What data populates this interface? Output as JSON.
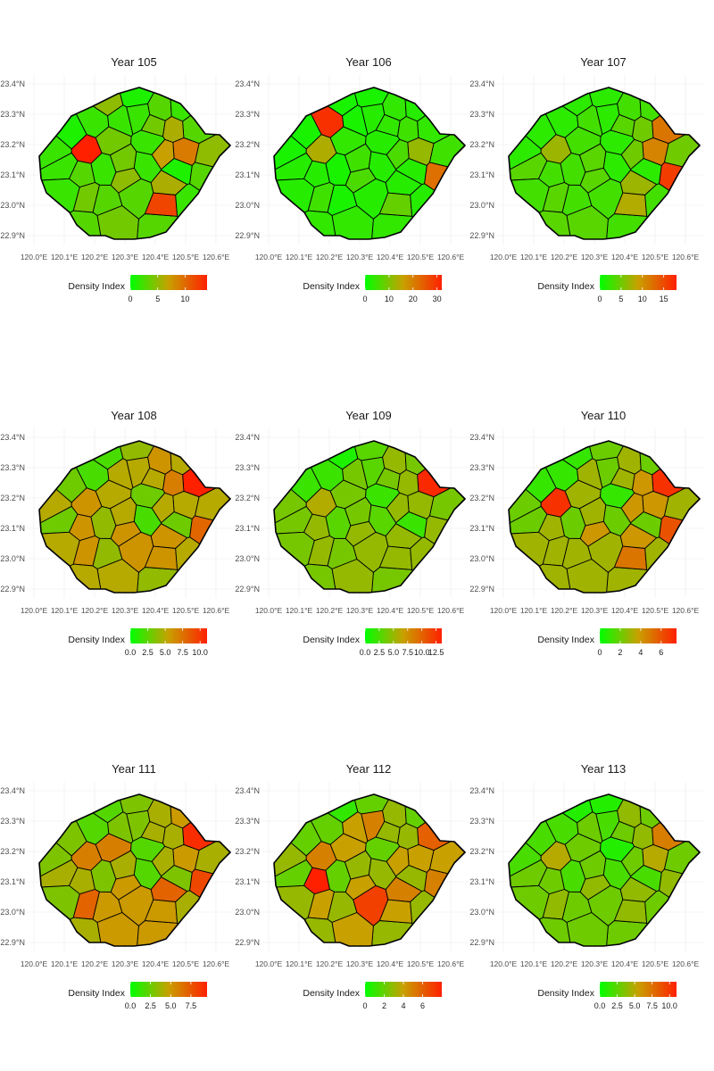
{
  "figure": {
    "legend_title": "Density Index",
    "color_low": "#00ff00",
    "color_mid": "#c8a000",
    "color_high": "#ff2000",
    "lat_ticks": [
      "22.9°N",
      "23.0°N",
      "23.1°N",
      "23.2°N",
      "23.3°N",
      "23.4°N"
    ],
    "lon_ticks": [
      "120.0°E",
      "120.1°E",
      "120.2°E",
      "120.3°E",
      "120.4°E",
      "120.5°E",
      "120.6°E"
    ]
  },
  "chart_data": [
    {
      "type": "heatmap",
      "title": "Year 105",
      "legend_ticks": [
        "0",
        "5",
        "10"
      ],
      "tick_values": [
        0,
        5,
        10
      ],
      "max": 14,
      "values": [
        2,
        1,
        3,
        6,
        3,
        2,
        4,
        1,
        2,
        2,
        3,
        2,
        2,
        4,
        5,
        3,
        6,
        2,
        2,
        5,
        4,
        3,
        1,
        2,
        9,
        4,
        14,
        3,
        3,
        7,
        12,
        3,
        2,
        4,
        5,
        2
      ]
    },
    {
      "type": "heatmap",
      "title": "Year 106",
      "legend_ticks": [
        "0",
        "10",
        "20",
        "30"
      ],
      "tick_values": [
        0,
        10,
        20,
        30
      ],
      "max": 32,
      "values": [
        30,
        3,
        2,
        3,
        4,
        3,
        4,
        2,
        3,
        2,
        4,
        3,
        2,
        4,
        5,
        3,
        5,
        3,
        2,
        6,
        4,
        3,
        2,
        3,
        12,
        5,
        14,
        22,
        4,
        6,
        8,
        4,
        3,
        5,
        2,
        3
      ]
    },
    {
      "type": "heatmap",
      "title": "Year 107",
      "legend_ticks": [
        "0",
        "5",
        "10",
        "15"
      ],
      "tick_values": [
        0,
        5,
        10,
        15
      ],
      "max": 18,
      "values": [
        2,
        2,
        3,
        7,
        12,
        4,
        3,
        2,
        2,
        3,
        3,
        2,
        3,
        4,
        5,
        3,
        5,
        2,
        2,
        4,
        4,
        3,
        2,
        3,
        11,
        4,
        7,
        16,
        3,
        5,
        8,
        4,
        3,
        4,
        2,
        3
      ]
    },
    {
      "type": "heatmap",
      "title": "Year 108",
      "legend_ticks": [
        "0.0",
        "2.5",
        "5.0",
        "7.5",
        "10.0"
      ],
      "tick_values": [
        0,
        2.5,
        5,
        7.5,
        10
      ],
      "max": 11,
      "values": [
        2,
        3,
        4,
        6,
        11,
        3,
        5,
        3,
        2,
        5,
        4,
        5,
        4,
        5,
        5,
        6,
        7,
        3,
        5,
        6,
        5,
        6,
        4,
        5,
        5,
        6,
        6,
        8,
        6,
        5,
        6,
        5,
        5,
        5,
        2,
        5
      ]
    },
    {
      "type": "heatmap",
      "title": "Year 109",
      "legend_ticks": [
        "0.0",
        "2.5",
        "5.0",
        "7.5",
        "10.0",
        "12.5"
      ],
      "tick_values": [
        0,
        2.5,
        5,
        7.5,
        10,
        12.5
      ],
      "max": 13.5,
      "values": [
        2,
        2,
        4,
        5,
        13,
        4,
        4,
        2,
        3,
        4,
        4,
        3,
        3,
        4,
        4,
        5,
        5,
        2,
        4,
        5,
        5,
        5,
        3,
        4,
        5,
        5,
        6,
        5,
        5,
        5,
        5,
        4,
        5,
        4,
        1,
        4
      ]
    },
    {
      "type": "heatmap",
      "title": "Year 110",
      "legend_ticks": [
        "0",
        "2",
        "4",
        "6"
      ],
      "tick_values": [
        0,
        2,
        4,
        6
      ],
      "max": 7.5,
      "values": [
        1,
        2,
        3,
        4,
        7,
        2,
        3,
        1,
        2,
        3,
        3,
        2,
        2,
        3,
        3,
        3,
        4,
        1,
        2,
        4,
        3,
        3,
        2,
        3,
        4,
        3,
        7,
        6,
        3,
        4,
        5,
        3,
        3,
        3,
        1,
        2
      ]
    },
    {
      "type": "heatmap",
      "title": "Year 111",
      "legend_ticks": [
        "0.0",
        "2.5",
        "5.0",
        "7.5"
      ],
      "tick_values": [
        0,
        2.5,
        5,
        7.5
      ],
      "max": 9.5,
      "values": [
        2,
        3,
        5,
        7,
        9,
        4,
        6,
        3,
        2,
        3,
        5,
        3,
        3,
        4,
        4,
        5,
        4,
        2,
        3,
        5,
        5,
        4,
        3,
        3,
        5,
        7,
        6,
        8,
        4,
        4,
        5,
        4,
        4,
        4,
        2,
        5
      ]
    },
    {
      "type": "heatmap",
      "title": "Year 112",
      "legend_ticks": [
        "0",
        "2",
        "4",
        "6"
      ],
      "tick_values": [
        0,
        2,
        4,
        6
      ],
      "max": 8,
      "values": [
        2,
        3,
        3,
        5,
        6,
        2,
        4,
        2,
        3,
        4,
        3,
        5,
        2,
        3,
        4,
        7,
        3,
        2,
        3,
        4,
        4,
        8,
        2,
        3,
        4,
        4,
        5,
        5,
        3,
        4,
        4,
        3,
        3,
        3,
        1,
        2
      ]
    },
    {
      "type": "heatmap",
      "title": "Year 113",
      "legend_ticks": [
        "0.0",
        "2.5",
        "5.0",
        "7.5",
        "10.0"
      ],
      "tick_values": [
        0,
        2.5,
        5,
        7.5,
        10
      ],
      "max": 11,
      "values": [
        2,
        2,
        3,
        4,
        7,
        3,
        3,
        2,
        2,
        3,
        3,
        2,
        2,
        3,
        3,
        3,
        4,
        1,
        2,
        4,
        3,
        3,
        1,
        3,
        5,
        4,
        5,
        4,
        4,
        3,
        4,
        3,
        3,
        3,
        1,
        3
      ]
    }
  ]
}
